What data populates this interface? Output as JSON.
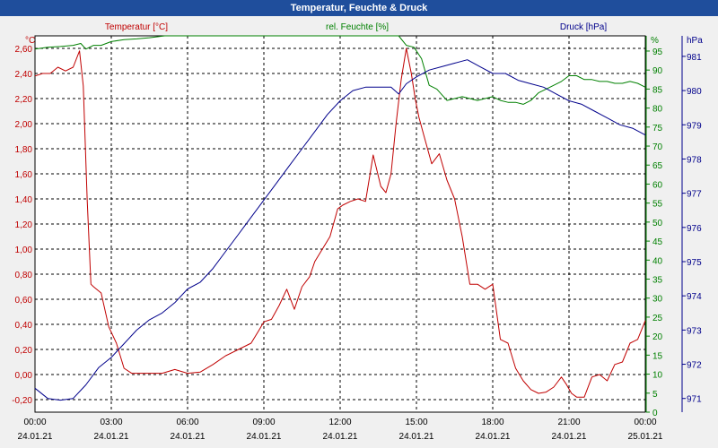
{
  "title": "Temperatur, Feuchte & Druck",
  "chart_data": {
    "type": "line",
    "grid": true,
    "x_ticks": [
      {
        "time": "00:00",
        "date": "24.01.21"
      },
      {
        "time": "03:00",
        "date": "24.01.21"
      },
      {
        "time": "06:00",
        "date": "24.01.21"
      },
      {
        "time": "09:00",
        "date": "24.01.21"
      },
      {
        "time": "12:00",
        "date": "24.01.21"
      },
      {
        "time": "15:00",
        "date": "24.01.21"
      },
      {
        "time": "18:00",
        "date": "24.01.21"
      },
      {
        "time": "21:00",
        "date": "24.01.21"
      },
      {
        "time": "00:00",
        "date": "25.01.21"
      }
    ],
    "xlim_hours": [
      0,
      24
    ],
    "axes": {
      "temperature": {
        "label": "Temperatur [°C]",
        "unit": "°C",
        "color": "#c00000",
        "ylim": [
          -0.3,
          2.7
        ],
        "ticks": [
          "-0,20",
          "0,00",
          "0,20",
          "0,40",
          "0,60",
          "0,80",
          "1,00",
          "1,20",
          "1,40",
          "1,60",
          "1,80",
          "2,00",
          "2,20",
          "2,40",
          "2,60"
        ],
        "tick_values": [
          -0.2,
          0,
          0.2,
          0.4,
          0.6,
          0.8,
          1.0,
          1.2,
          1.4,
          1.6,
          1.8,
          2.0,
          2.2,
          2.4,
          2.6
        ]
      },
      "humidity": {
        "label": "rel. Feuchte [%]",
        "unit": "%",
        "color": "#008000",
        "ylim": [
          0,
          99
        ],
        "ticks": [
          "0",
          "5",
          "10",
          "15",
          "20",
          "25",
          "30",
          "35",
          "40",
          "45",
          "50",
          "55",
          "60",
          "65",
          "70",
          "75",
          "80",
          "85",
          "90",
          "95"
        ],
        "tick_values": [
          0,
          5,
          10,
          15,
          20,
          25,
          30,
          35,
          40,
          45,
          50,
          55,
          60,
          65,
          70,
          75,
          80,
          85,
          90,
          95
        ]
      },
      "pressure": {
        "label": "Druck [hPa]",
        "unit": "hPa",
        "color": "#00008b",
        "ylim": [
          970.6,
          981.6
        ],
        "ticks": [
          "971",
          "972",
          "973",
          "974",
          "975",
          "976",
          "977",
          "978",
          "979",
          "980",
          "981"
        ],
        "tick_values": [
          971,
          972,
          973,
          974,
          975,
          976,
          977,
          978,
          979,
          980,
          981
        ]
      }
    },
    "series": [
      {
        "name": "Temperatur [°C]",
        "axis": "temperature",
        "color": "#c00000",
        "x": [
          0,
          0.3,
          0.6,
          0.9,
          1.2,
          1.5,
          1.75,
          1.9,
          2.05,
          2.2,
          2.3,
          2.6,
          2.9,
          3.2,
          3.5,
          3.8,
          4.3,
          5,
          5.5,
          6,
          6.5,
          7,
          7.5,
          8,
          8.5,
          8.8,
          9,
          9.3,
          9.6,
          9.9,
          10.2,
          10.5,
          10.8,
          11,
          11.3,
          11.6,
          11.9,
          12.1,
          12.4,
          12.7,
          13,
          13.3,
          13.6,
          13.8,
          14,
          14.2,
          14.4,
          14.6,
          14.8,
          14.95,
          15.1,
          15.3,
          15.6,
          15.9,
          16.2,
          16.5,
          16.8,
          17.1,
          17.4,
          17.7,
          18,
          18.3,
          18.6,
          18.9,
          19.2,
          19.5,
          19.8,
          20.1,
          20.4,
          20.7,
          20.9,
          21.1,
          21.3,
          21.6,
          21.9,
          22.2,
          22.5,
          22.8,
          23.1,
          23.4,
          23.7,
          24
        ],
        "y": [
          2.38,
          2.4,
          2.4,
          2.45,
          2.42,
          2.45,
          2.58,
          2.3,
          1.4,
          0.72,
          0.7,
          0.65,
          0.38,
          0.25,
          0.05,
          0.01,
          0.01,
          0.01,
          0.04,
          0.01,
          0.02,
          0.08,
          0.15,
          0.2,
          0.25,
          0.35,
          0.42,
          0.44,
          0.55,
          0.68,
          0.52,
          0.7,
          0.78,
          0.9,
          1.0,
          1.1,
          1.32,
          1.35,
          1.38,
          1.4,
          1.38,
          1.75,
          1.5,
          1.45,
          1.6,
          2.0,
          2.35,
          2.6,
          2.4,
          2.2,
          2.05,
          1.9,
          1.68,
          1.76,
          1.55,
          1.4,
          1.1,
          0.72,
          0.72,
          0.68,
          0.72,
          0.28,
          0.25,
          0.05,
          -0.05,
          -0.12,
          -0.15,
          -0.14,
          -0.1,
          -0.02,
          -0.08,
          -0.15,
          -0.18,
          -0.18,
          -0.02,
          0.0,
          -0.05,
          0.08,
          0.1,
          0.25,
          0.28,
          0.43
        ]
      },
      {
        "name": "rel. Feuchte [%]",
        "axis": "humidity",
        "color": "#008000",
        "x": [
          0,
          0.5,
          1,
          1.5,
          1.8,
          2.0,
          2.3,
          2.6,
          3,
          3.5,
          4,
          4.5,
          5.1,
          14.3,
          14.6,
          14.9,
          15.2,
          15.5,
          15.8,
          16.2,
          16.5,
          16.8,
          17.1,
          17.4,
          17.7,
          18,
          18.3,
          18.6,
          18.9,
          19.2,
          19.5,
          19.8,
          20.1,
          20.4,
          20.7,
          21,
          21.3,
          21.6,
          21.9,
          22.2,
          22.5,
          22.8,
          23.1,
          23.4,
          23.7,
          24
        ],
        "y": [
          95.5,
          96,
          96.2,
          96.5,
          97,
          95.5,
          96.5,
          96.5,
          97.5,
          98,
          98.2,
          98.5,
          99,
          99,
          96.5,
          96,
          93,
          86,
          85,
          82,
          82.5,
          83,
          82.5,
          82,
          82.5,
          83,
          82,
          81.5,
          81.5,
          81,
          82,
          84,
          85,
          86,
          87,
          88.5,
          88.5,
          87.5,
          87.5,
          87,
          87,
          86.5,
          86.5,
          87,
          86.5,
          85.5
        ]
      },
      {
        "name": "Druck [hPa]",
        "axis": "pressure",
        "color": "#00008b",
        "x": [
          0,
          0.5,
          1,
          1.5,
          2,
          2.5,
          3,
          3.5,
          4,
          4.5,
          5,
          5.5,
          6,
          6.5,
          7,
          7.5,
          8,
          8.5,
          9,
          9.5,
          10,
          10.5,
          11,
          11.5,
          12,
          12.5,
          13,
          13.5,
          14,
          14.3,
          14.6,
          15,
          15.5,
          16,
          16.5,
          17,
          17.5,
          18,
          18.5,
          19,
          19.5,
          20,
          20.5,
          21,
          21.5,
          22,
          22.5,
          23,
          23.5,
          24
        ],
        "y": [
          971.3,
          971.0,
          970.95,
          971.0,
          971.4,
          971.9,
          972.2,
          972.6,
          973.0,
          973.3,
          973.5,
          973.8,
          974.2,
          974.4,
          974.8,
          975.3,
          975.8,
          976.3,
          976.8,
          977.3,
          977.8,
          978.3,
          978.8,
          979.3,
          979.7,
          980.0,
          980.1,
          980.1,
          980.1,
          979.9,
          980.2,
          980.4,
          980.6,
          980.7,
          980.8,
          980.9,
          980.7,
          980.5,
          980.5,
          980.3,
          980.2,
          980.1,
          979.9,
          979.7,
          979.6,
          979.4,
          979.2,
          979.0,
          978.9,
          978.7
        ]
      }
    ]
  }
}
